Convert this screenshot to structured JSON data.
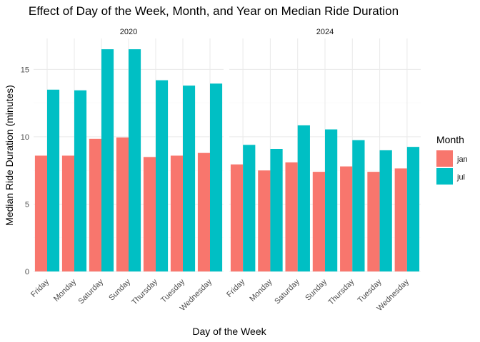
{
  "chart_data": {
    "type": "bar",
    "title": "Effect of Day of the Week, Month, and Year on Median Ride Duration",
    "xlabel": "Day of the Week",
    "ylabel": "Median Ride Duration (minutes)",
    "ylim": [
      0,
      17.3
    ],
    "yticks": [
      0,
      5,
      10,
      15
    ],
    "grid": true,
    "legend": {
      "title": "Month",
      "placement": "right",
      "entries": [
        {
          "name": "jan",
          "color": "#F8766D"
        },
        {
          "name": "jul",
          "color": "#00BFC4"
        }
      ]
    },
    "categories": [
      "Friday",
      "Monday",
      "Saturday",
      "Sunday",
      "Thursday",
      "Tuesday",
      "Wednesday"
    ],
    "facets": [
      {
        "label": "2020",
        "series": [
          {
            "name": "jan",
            "values": [
              8.6,
              8.6,
              9.85,
              9.95,
              8.5,
              8.6,
              8.8
            ]
          },
          {
            "name": "jul",
            "values": [
              13.5,
              13.45,
              16.5,
              16.5,
              14.2,
              13.8,
              13.95
            ]
          }
        ]
      },
      {
        "label": "2024",
        "series": [
          {
            "name": "jan",
            "values": [
              7.95,
              7.5,
              8.1,
              7.4,
              7.8,
              7.4,
              7.65
            ]
          },
          {
            "name": "jul",
            "values": [
              9.4,
              9.1,
              10.85,
              10.55,
              9.75,
              9.0,
              9.25
            ]
          }
        ]
      }
    ]
  }
}
